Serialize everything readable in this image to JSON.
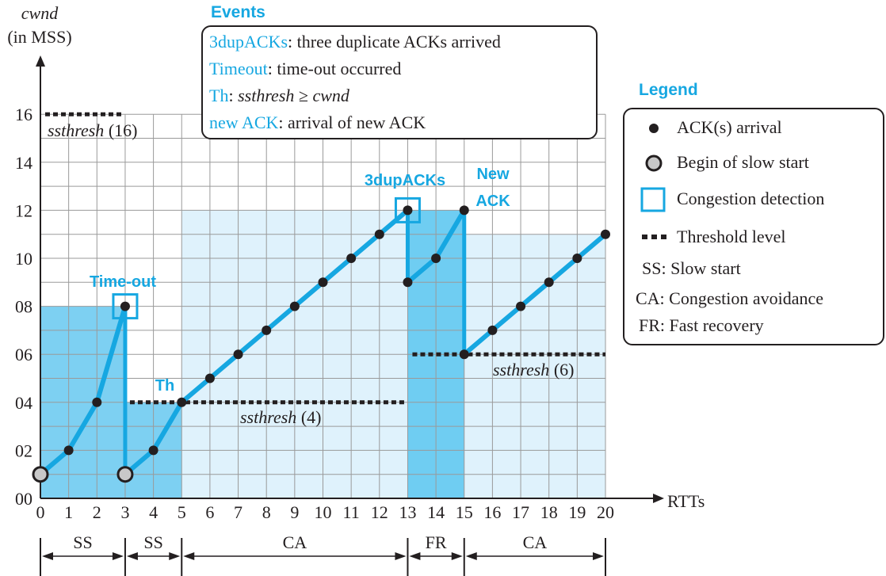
{
  "axes": {
    "y_title": "cwnd",
    "y_unit": "(in MSS)",
    "x_title": "RTTs",
    "y_ticks": [
      "00",
      "02",
      "04",
      "06",
      "08",
      "10",
      "12",
      "14",
      "16"
    ],
    "x_ticks": [
      "0",
      "1",
      "2",
      "3",
      "4",
      "5",
      "6",
      "7",
      "8",
      "9",
      "10",
      "11",
      "12",
      "13",
      "14",
      "15",
      "16",
      "17",
      "18",
      "19",
      "20"
    ]
  },
  "chart_data": {
    "type": "line",
    "xlabel": "RTTs",
    "ylabel": "cwnd (in MSS)",
    "xlim": [
      0,
      20
    ],
    "ylim": [
      0,
      16
    ],
    "series": [
      {
        "x": [
          0,
          1,
          2,
          3
        ],
        "y": [
          1,
          2,
          4,
          8
        ]
      },
      {
        "x": [
          3,
          4,
          5,
          6,
          7,
          8,
          9,
          10,
          11,
          12,
          13
        ],
        "y": [
          1,
          2,
          4,
          5,
          6,
          7,
          8,
          9,
          10,
          11,
          12
        ]
      },
      {
        "x": [
          13,
          14,
          15
        ],
        "y": [
          9,
          10,
          12
        ]
      },
      {
        "x": [
          15,
          16,
          17,
          18,
          19,
          20
        ],
        "y": [
          6,
          7,
          8,
          9,
          10,
          11
        ]
      }
    ],
    "drops": [
      {
        "x": 3,
        "from": 8,
        "to": 1
      },
      {
        "x": 13,
        "from": 12,
        "to": 9
      },
      {
        "x": 15,
        "from": 12,
        "to": 6
      }
    ],
    "slow_start_begin": [
      {
        "x": 0,
        "y": 1
      },
      {
        "x": 3,
        "y": 1
      }
    ],
    "congestion_detection": [
      {
        "x": 3,
        "y": 8
      },
      {
        "x": 13,
        "y": 12
      }
    ],
    "thresholds": [
      {
        "label": "ssthresh",
        "value_label": "(16)",
        "value": 16,
        "x_from": 0,
        "x_to": 3
      },
      {
        "label": "ssthresh",
        "value_label": "(4)",
        "value": 4,
        "x_from": 3,
        "x_to": 13
      },
      {
        "label": "ssthresh",
        "value_label": "(6)",
        "value": 6,
        "x_from": 13,
        "x_to": 20
      }
    ],
    "regions": [
      {
        "x_from": 0,
        "x_to": 3,
        "y_top": 8,
        "shade": "mid"
      },
      {
        "x_from": 3,
        "x_to": 5,
        "y_top": 4,
        "shade": "mid"
      },
      {
        "x_from": 5,
        "x_to": 13,
        "y_top": 12,
        "shade": "light"
      },
      {
        "x_from": 13,
        "x_to": 15,
        "y_top": 12,
        "shade": "dark"
      },
      {
        "x_from": 15,
        "x_to": 20,
        "y_top": 11,
        "shade": "light"
      }
    ],
    "phases": [
      {
        "label": "SS",
        "x_from": 0,
        "x_to": 3
      },
      {
        "label": "SS",
        "x_from": 3,
        "x_to": 5
      },
      {
        "label": "CA",
        "x_from": 5,
        "x_to": 13
      },
      {
        "label": "FR",
        "x_from": 13,
        "x_to": 15
      },
      {
        "label": "CA",
        "x_from": 15,
        "x_to": 20
      }
    ],
    "annotations": [
      {
        "text": "Time-out",
        "x": 3,
        "y": 8
      },
      {
        "text": "Th",
        "x": 5,
        "y": 4
      },
      {
        "text": "3dupACKs",
        "x": 13,
        "y": 12
      },
      {
        "text": "New",
        "x": 15,
        "y": 12
      },
      {
        "text": "ACK",
        "x": 15,
        "y": 12
      }
    ]
  },
  "events": {
    "title": "Events",
    "items": [
      {
        "key": "3dupACKs",
        "sep": ": ",
        "desc": "three duplicate ACKs arrived"
      },
      {
        "key": "Timeout",
        "sep": ": ",
        "desc": "time-out occurred"
      },
      {
        "key": "Th",
        "sep": ": ",
        "desc_italic1": "ssthresh",
        "desc_mid": " ≥  ",
        "desc_italic2": "cwnd"
      },
      {
        "key": "new ACK",
        "sep": ": ",
        "desc": "arrival of new ACK"
      }
    ]
  },
  "legend": {
    "title": "Legend",
    "items": [
      {
        "symbol": "dot",
        "text": "ACK(s) arrival"
      },
      {
        "symbol": "gray-dot",
        "text": "Begin of slow start"
      },
      {
        "symbol": "square",
        "text": "Congestion detection"
      },
      {
        "symbol": "dash",
        "text": "Threshold level"
      },
      {
        "symbol": "none",
        "text": "SS: Slow start"
      },
      {
        "symbol": "none",
        "text": "CA: Congestion avoidance"
      },
      {
        "symbol": "none",
        "text": "FR: Fast recovery"
      }
    ]
  },
  "colors": {
    "line": "#16a7e1",
    "accent_text": "#16a7e1",
    "dark_region": "#6fcdf2",
    "mid_region": "#7dd0f2",
    "light_region": "#dff2fc",
    "grid": "#9a9a9a",
    "ink": "#231f20",
    "gray_dot": "#c8c8c8"
  }
}
